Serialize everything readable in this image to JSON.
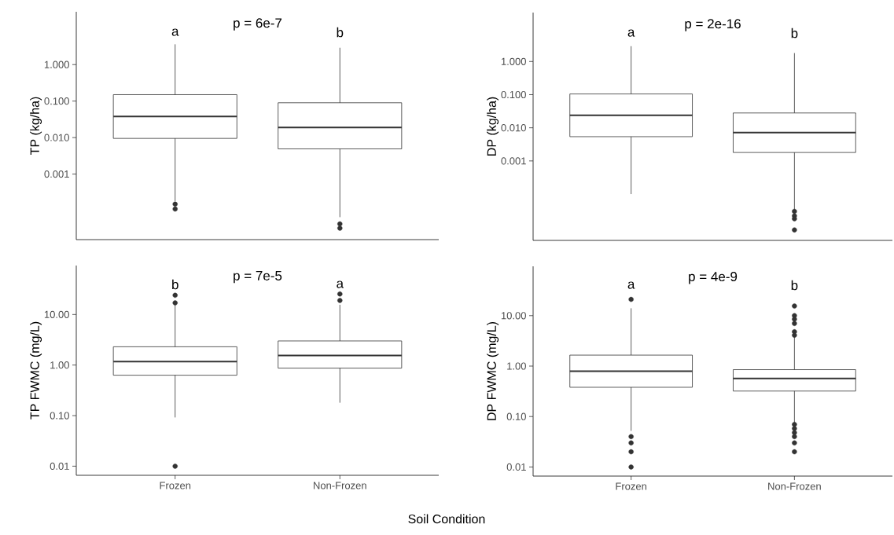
{
  "chart_data": [
    {
      "type": "box",
      "categories": [
        null,
        null
      ],
      "ylabel": "TP (kg/ha)",
      "log": true,
      "ylim": [
        1.6e-05,
        28
      ],
      "tick_labels": "y",
      "yticks": [
        {
          "value": 1,
          "label": "1.000"
        },
        {
          "value": 0.1,
          "label": "0.100"
        },
        {
          "value": 0.01,
          "label": "0.010"
        },
        {
          "value": 0.001,
          "label": "0.001"
        }
      ],
      "series": [
        {
          "color": "#333333",
          "boxes": [
            {
              "low": 0.00018,
              "q1": 0.0095,
              "median": 0.038,
              "q3": 0.15,
              "high": 3.6,
              "outliers": [
                0.00015,
                0.00011
              ]
            },
            {
              "low": 6.6e-05,
              "q1": 0.0049,
              "median": 0.019,
              "q3": 0.09,
              "high": 2.9,
              "outliers": [
                4.3e-05,
                3.3e-05
              ]
            }
          ]
        }
      ],
      "annotations": [
        "p = 6e-7",
        "a",
        "b"
      ]
    },
    {
      "type": "box",
      "categories": [
        null,
        null
      ],
      "ylabel": "DP (kg/ha)",
      "log": true,
      "ylim": [
        4e-06,
        30
      ],
      "tick_labels": "y",
      "yticks": [
        {
          "value": 1,
          "label": "1.000"
        },
        {
          "value": 0.1,
          "label": "0.100"
        },
        {
          "value": 0.01,
          "label": "0.010"
        },
        {
          "value": 0.001,
          "label": "0.001"
        }
      ],
      "series": [
        {
          "color": "#333333",
          "boxes": [
            {
              "low": 0.0001,
              "q1": 0.0054,
              "median": 0.024,
              "q3": 0.105,
              "high": 2.9
            },
            {
              "low": 3.3e-05,
              "q1": 0.0018,
              "median": 0.0072,
              "q3": 0.028,
              "high": 1.8,
              "outliers": [
                3e-05,
                2.2e-05,
                1.8e-05,
                8.3e-06
              ]
            }
          ]
        }
      ],
      "annotations": [
        "p = 2e-16",
        "a",
        "b"
      ]
    },
    {
      "type": "box",
      "categories": [
        "Frozen",
        "Non-Frozen"
      ],
      "ylabel": "TP FWMC (mg/L)",
      "xlabel": "Soil Condition",
      "log": true,
      "ylim": [
        0.0066,
        93
      ],
      "yticks": [
        {
          "value": 10,
          "label": "10.00"
        },
        {
          "value": 1,
          "label": "1.00"
        },
        {
          "value": 0.1,
          "label": "0.10"
        },
        {
          "value": 0.01,
          "label": "0.01"
        }
      ],
      "series": [
        {
          "color": "#333333",
          "boxes": [
            {
              "low": 0.092,
              "q1": 0.63,
              "median": 1.17,
              "q3": 2.3,
              "high": 16,
              "outliers": [
                24,
                17,
                0.01
              ]
            },
            {
              "low": 0.18,
              "q1": 0.87,
              "median": 1.54,
              "q3": 3.0,
              "high": 15.6,
              "outliers": [
                25.5,
                19
              ]
            }
          ]
        }
      ],
      "annotations": [
        "p = 7e-5",
        "b",
        "a"
      ]
    },
    {
      "type": "box",
      "categories": [
        "Frozen",
        "Non-Frozen"
      ],
      "ylabel": "DP FWMC (mg/L)",
      "log": true,
      "ylim": [
        0.0066,
        95
      ],
      "yticks": [
        {
          "value": 10,
          "label": "10.00"
        },
        {
          "value": 1,
          "label": "1.00"
        },
        {
          "value": 0.1,
          "label": "0.10"
        },
        {
          "value": 0.01,
          "label": "0.01"
        }
      ],
      "series": [
        {
          "color": "#333333",
          "boxes": [
            {
              "low": 0.052,
              "q1": 0.38,
              "median": 0.79,
              "q3": 1.65,
              "high": 14,
              "outliers": [
                21,
                0.04,
                0.03,
                0.02,
                0.01
              ]
            },
            {
              "low": 0.073,
              "q1": 0.32,
              "median": 0.57,
              "q3": 0.85,
              "high": 3.9,
              "outliers": [
                15.5,
                10,
                8.5,
                7,
                4.8,
                4.1,
                0.07,
                0.058,
                0.048,
                0.04,
                0.03,
                0.02
              ]
            }
          ]
        }
      ],
      "annotations": [
        "p = 4e-9",
        "a",
        "b"
      ]
    }
  ]
}
